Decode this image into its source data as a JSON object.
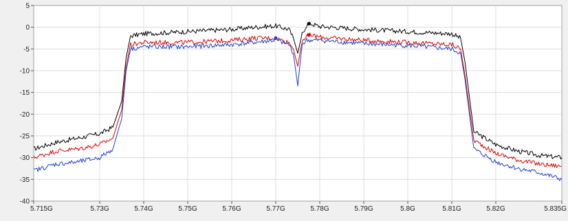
{
  "chart_data": {
    "type": "line",
    "grid": true,
    "legend": "none",
    "xlim": [
      5.715,
      5.835
    ],
    "ylim": [
      -40,
      5
    ],
    "x_ticks": [
      5.715,
      5.73,
      5.74,
      5.75,
      5.76,
      5.77,
      5.78,
      5.79,
      5.8,
      5.81,
      5.82,
      5.835
    ],
    "x_tick_labels": [
      "5.715G",
      "5.73G",
      "5.74G",
      "5.75G",
      "5.76G",
      "5.77G",
      "5.78G",
      "5.79G",
      "5.8G",
      "5.81G",
      "5.82G",
      "5.835G"
    ],
    "y_ticks": [
      5,
      0,
      -5,
      -10,
      -15,
      -20,
      -25,
      -30,
      -35,
      -40
    ],
    "y_tick_labels": [
      "5",
      "0",
      "-5",
      "-10",
      "-15",
      "-20",
      "-25",
      "-30",
      "-35",
      "-40"
    ],
    "series": [
      {
        "color": "#000000",
        "x": [
          5.715,
          5.72,
          5.725,
          5.73,
          5.733,
          5.735,
          5.736,
          5.737,
          5.74,
          5.75,
          5.76,
          5.765,
          5.77,
          5.773,
          5.774,
          5.775,
          5.776,
          5.777,
          5.778,
          5.78,
          5.79,
          5.8,
          5.81,
          5.812,
          5.813,
          5.815,
          5.82,
          5.825,
          5.83,
          5.835
        ],
        "y": [
          -28,
          -26.5,
          -25.5,
          -24.5,
          -23,
          -17,
          -7,
          -2,
          -1.5,
          -1,
          -0.5,
          0,
          0.3,
          -0.5,
          -2.5,
          -6,
          -1.5,
          0.5,
          0.8,
          0.2,
          -0.5,
          -1,
          -1.5,
          -2.5,
          -8,
          -24,
          -27,
          -28.5,
          -29.5,
          -30
        ]
      },
      {
        "color": "#e00000",
        "x": [
          5.715,
          5.72,
          5.725,
          5.73,
          5.733,
          5.735,
          5.736,
          5.737,
          5.74,
          5.75,
          5.76,
          5.765,
          5.77,
          5.773,
          5.774,
          5.775,
          5.776,
          5.777,
          5.778,
          5.78,
          5.79,
          5.8,
          5.81,
          5.812,
          5.813,
          5.815,
          5.82,
          5.825,
          5.83,
          5.835
        ],
        "y": [
          -30,
          -28.5,
          -28,
          -27,
          -25.5,
          -19,
          -9,
          -4,
          -3.5,
          -3.5,
          -3,
          -2.5,
          -2.5,
          -3.5,
          -5,
          -9,
          -3,
          -2,
          -1.8,
          -2.3,
          -3,
          -3.5,
          -4,
          -5,
          -11,
          -26,
          -29,
          -30.5,
          -31.5,
          -32
        ]
      },
      {
        "color": "#1a3fd0",
        "x": [
          5.715,
          5.72,
          5.725,
          5.73,
          5.733,
          5.735,
          5.736,
          5.737,
          5.74,
          5.75,
          5.76,
          5.765,
          5.77,
          5.773,
          5.774,
          5.775,
          5.776,
          5.777,
          5.778,
          5.78,
          5.79,
          5.8,
          5.81,
          5.812,
          5.813,
          5.815,
          5.82,
          5.825,
          5.83,
          5.835
        ],
        "y": [
          -33,
          -31.5,
          -31,
          -30,
          -28,
          -21,
          -10,
          -5,
          -4.5,
          -4.5,
          -4,
          -3.5,
          -3,
          -4,
          -6,
          -13.5,
          -4,
          -3,
          -3,
          -3,
          -3.8,
          -4.2,
          -5,
          -6,
          -12,
          -28,
          -31,
          -32.5,
          -33.5,
          -35
        ]
      }
    ],
    "markers": [
      {
        "color": "#000000",
        "x": 5.7775,
        "y": 0.8
      },
      {
        "color": "#e00000",
        "x": 5.7775,
        "y": -1.8
      },
      {
        "color": "#1a3fd0",
        "x": 5.77,
        "y": -2.5
      }
    ]
  }
}
